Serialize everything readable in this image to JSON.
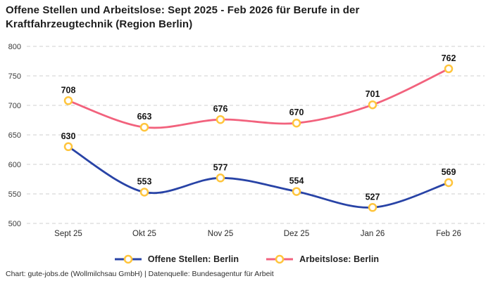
{
  "title": {
    "full": "Offene Stellen und Arbeitslose: Sept 2025 - Feb 2026 für Berufe in der Kraftfahrzeugtechnik (Region Berlin)",
    "line1": "Offene Stellen und Arbeitslose: Sept 2025 - Feb 2026 für Berufe in der",
    "line2": "Kraftfahrzeugtechnik (Region Berlin)"
  },
  "chart_data": {
    "type": "line",
    "categories": [
      "Sept 25",
      "Okt 25",
      "Nov 25",
      "Dez 25",
      "Jan 26",
      "Feb 26"
    ],
    "series": [
      {
        "name": "Offene Stellen: Berlin",
        "values": [
          630,
          553,
          577,
          554,
          527,
          569
        ],
        "color": "#2843A6"
      },
      {
        "name": "Arbeitslose: Berlin",
        "values": [
          708,
          663,
          676,
          670,
          701,
          762
        ],
        "color": "#F2627D"
      }
    ],
    "marker_color": "#FFC53D",
    "marker_fill": "#FFFFFF",
    "grid_color": "#CFCFCF",
    "label_color": "#141414",
    "tick_color": "#3a3a3a",
    "y_ticks": [
      800,
      750,
      700,
      650,
      600,
      550,
      500
    ],
    "ylim": [
      500,
      800
    ],
    "grid": "horizontal dashed",
    "legend_position": "bottom",
    "data_labels": true,
    "title": "Offene Stellen und Arbeitslose: Sept 2025 - Feb 2026 für Berufe in der Kraftfahrzeugtechnik (Region Berlin)",
    "xlabel": "",
    "ylabel": ""
  },
  "footer": {
    "text": "Chart: gute-jobs.de (Wollmilchsau GmbH) | Datenquelle: Bundesagentur für Arbeit"
  }
}
